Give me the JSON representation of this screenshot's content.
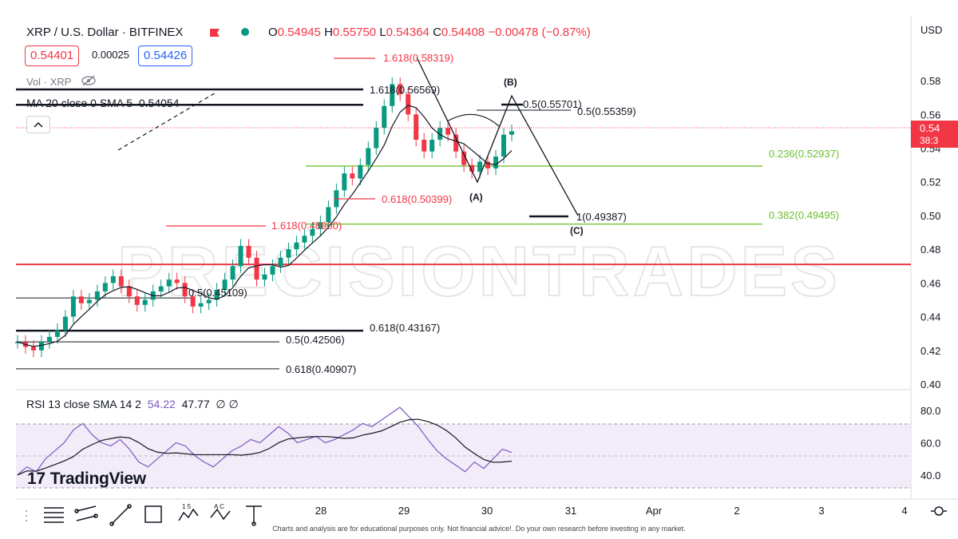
{
  "header": {
    "symbol": "XRP / U.S. Dollar · BITFINEX",
    "ohlc": {
      "o_label": "O",
      "o": "0.54945",
      "h_label": "H",
      "h": "0.55750",
      "l_label": "L",
      "l": "0.54364",
      "c_label": "C",
      "c": "0.54408",
      "change": "−0.00478 (−0.87%)"
    },
    "bid": "0.54401",
    "spread": "0.00025",
    "ask": "0.54426",
    "vol_label": "Vol · XRP",
    "ma_label": "MA 20 close 0 SMA 5",
    "ma_value": "0.54054",
    "colors": {
      "up": "#089981",
      "down": "#f23645",
      "fib_green": "#7cc940",
      "accent_blue": "#2962ff"
    }
  },
  "axis": {
    "currency": "USD",
    "price_ticks": [
      "0.58",
      "0.56",
      "0.54",
      "0.52",
      "0.50",
      "0.48",
      "0.46",
      "0.44",
      "0.42",
      "0.40"
    ],
    "last_price": "0.54",
    "countdown": "38:3",
    "rsi_ticks": [
      "80.0",
      "60.0",
      "40.0"
    ],
    "date_ticks": [
      "28",
      "29",
      "30",
      "31",
      "Apr",
      "2",
      "3",
      "4"
    ]
  },
  "annotations": {
    "fib_labels": [
      {
        "text": "1.618(0.58319)",
        "color": "red"
      },
      {
        "text": "1.618(0.56569)",
        "color": "black"
      },
      {
        "text": "0.5(0.55701)",
        "color": "black"
      },
      {
        "text": "0.5(0.55359)",
        "color": "black"
      },
      {
        "text": "0.236(0.52937)",
        "color": "green"
      },
      {
        "text": "0.618(0.50399)",
        "color": "red"
      },
      {
        "text": "1(0.49387)",
        "color": "black"
      },
      {
        "text": "0.382(0.49495)",
        "color": "green"
      },
      {
        "text": "1.618(0.48900)",
        "color": "red"
      },
      {
        "text": "0.5(0.45109)",
        "color": "black"
      },
      {
        "text": "0.618(0.43167)",
        "color": "black"
      },
      {
        "text": "0.5(0.42506)",
        "color": "black"
      },
      {
        "text": "0.618(0.40907)",
        "color": "black"
      }
    ],
    "wave_labels": [
      "(A)",
      "(B)",
      "(C)"
    ],
    "watermark": "PRECISIONTRADES"
  },
  "rsi": {
    "label": "RSI 13 close SMA 14 2",
    "v1": "54.22",
    "v2": "47.77",
    "extra": "∅ ∅"
  },
  "branding": "TradingView",
  "disclaimer": "Charts and analysis are for educational purposes only. Not financial advice!. Do your own research before investing in any market.",
  "chart_data": {
    "type": "candlestick",
    "title": "XRP / U.S. Dollar · BITFINEX",
    "ylim": [
      0.4,
      0.59
    ],
    "x_range_days": [
      "27",
      "28",
      "29",
      "30",
      "31",
      "Apr",
      "2",
      "3",
      "4"
    ],
    "price_path": [
      0.425,
      0.422,
      0.42,
      0.425,
      0.428,
      0.432,
      0.44,
      0.452,
      0.448,
      0.45,
      0.455,
      0.46,
      0.464,
      0.458,
      0.452,
      0.447,
      0.45,
      0.455,
      0.458,
      0.462,
      0.46,
      0.452,
      0.446,
      0.448,
      0.45,
      0.456,
      0.462,
      0.47,
      0.482,
      0.475,
      0.462,
      0.465,
      0.47,
      0.475,
      0.48,
      0.484,
      0.488,
      0.492,
      0.496,
      0.505,
      0.515,
      0.525,
      0.522,
      0.53,
      0.54,
      0.552,
      0.565,
      0.578,
      0.572,
      0.56,
      0.545,
      0.538,
      0.545,
      0.552,
      0.548,
      0.538,
      0.53,
      0.526,
      0.532,
      0.528,
      0.535,
      0.548,
      0.55
    ],
    "rsi_path": [
      40,
      45,
      42,
      50,
      55,
      60,
      68,
      72,
      65,
      60,
      58,
      62,
      56,
      48,
      45,
      50,
      55,
      60,
      58,
      52,
      48,
      45,
      50,
      55,
      58,
      62,
      60,
      65,
      70,
      66,
      60,
      62,
      64,
      60,
      62,
      65,
      68,
      72,
      70,
      74,
      78,
      82,
      76,
      70,
      62,
      55,
      50,
      46,
      42,
      48,
      44,
      50,
      56,
      54
    ],
    "rsi_levels": [
      70,
      50,
      30
    ],
    "rsi_ylim": [
      25,
      88
    ],
    "horizontal_levels": [
      {
        "value": 0.471,
        "color": "red"
      },
      {
        "value": 0.52937,
        "color": "green"
      },
      {
        "value": 0.49495,
        "color": "green"
      },
      {
        "value": 0.56569,
        "color": "black"
      },
      {
        "value": 0.43167,
        "color": "black"
      },
      {
        "value": 0.42506,
        "color": "black"
      },
      {
        "value": 0.40907,
        "color": "black"
      },
      {
        "value": 0.45109,
        "color": "black"
      }
    ]
  }
}
